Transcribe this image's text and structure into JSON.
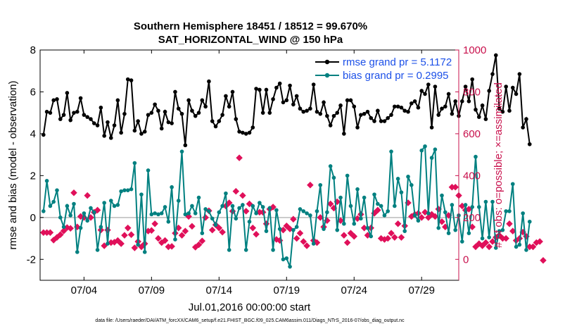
{
  "chart_data": {
    "type": "line",
    "title_line1": "Southern Hemisphere 18451 / 18512 = 99.670%",
    "title_line2": "SAT_HORIZONTAL_WIND @ 150 hPa",
    "xlabel": "Jul.01,2016 00:00:00 start",
    "ylabel": "rmse and bias (model - observation)",
    "y2label": "# of obs: o=possible; ×=assimilated",
    "footer": "data file: /Users/raeder/DAI/ATM_forcXX/CAM6_setup/f.e21.FHIST_BGC.f09_025.CAM6assim.011/Diags_NTrS_2016-07/obs_diag_output.nc",
    "xlim": [
      0.75,
      31.75
    ],
    "ylim": [
      -3,
      8
    ],
    "y2lim": [
      -100,
      1000
    ],
    "xticks": [
      {
        "value": 4,
        "label": "07/04"
      },
      {
        "value": 9,
        "label": "07/09"
      },
      {
        "value": 14,
        "label": "07/14"
      },
      {
        "value": 19,
        "label": "07/19"
      },
      {
        "value": 24,
        "label": "07/24"
      },
      {
        "value": 29,
        "label": "07/29"
      }
    ],
    "yticks": [
      -2,
      0,
      2,
      4,
      6,
      8
    ],
    "y2ticks": [
      0,
      200,
      400,
      600,
      800,
      1000
    ],
    "colors": {
      "rmse": "#000000",
      "bias": "#008080",
      "obs": "#e0105a",
      "legend_text": "#1c50e8",
      "axis": "#000000",
      "right_axis": "#c8104c",
      "zero_line": "#bbbbbb"
    },
    "legend": [
      {
        "name": "rmse grand pr = 5.1172",
        "series": "rmse"
      },
      {
        "name": "bias grand pr = 0.2995",
        "series": "bias"
      }
    ],
    "x_start": 1.0,
    "x_step": 0.25,
    "series": [
      {
        "name": "rmse",
        "values": [
          3.95,
          5.05,
          5.0,
          5.6,
          5.65,
          4.7,
          4.9,
          5.95,
          4.65,
          5.0,
          5.05,
          5.7,
          4.9,
          4.8,
          4.7,
          4.5,
          4.4,
          5.25,
          3.9,
          4.55,
          3.8,
          4.4,
          5.6,
          4.05,
          4.95,
          6.6,
          6.55,
          4.15,
          4.6,
          4.0,
          4.1,
          4.9,
          5.0,
          5.4,
          5.1,
          4.25,
          5.05,
          4.55,
          4.5,
          6.0,
          5.2,
          4.95,
          3.45,
          5.6,
          5.1,
          4.85,
          5.0,
          5.6,
          5.3,
          6.5,
          4.6,
          4.35,
          4.6,
          4.9,
          5.8,
          5.3,
          6.0,
          4.7,
          4.1,
          4.05,
          4.0,
          4.05,
          4.3,
          6.15,
          6.1,
          5.0,
          6.1,
          5.0,
          5.65,
          6.2,
          6.4,
          5.5,
          5.6,
          6.3,
          5.4,
          5.8,
          5.2,
          5.05,
          5.1,
          5.2,
          6.35,
          5.05,
          4.95,
          5.5,
          4.85,
          4.4,
          4.85,
          5.0,
          5.35,
          4.0,
          5.6,
          5.6,
          5.3,
          4.3,
          4.9,
          4.95,
          5.05,
          4.75,
          4.6,
          5.1,
          4.6,
          4.6,
          4.75,
          4.9,
          5.3,
          5.3,
          5.25,
          5.1,
          5.05,
          5.45,
          5.55,
          5.25,
          6.05,
          5.9,
          6.35,
          4.3,
          6.25,
          4.9,
          5.2,
          5.3,
          5.9,
          4.95,
          5.55,
          4.85,
          5.55,
          6.25,
          5.55,
          6.6,
          5.15,
          4.8,
          5.35,
          4.7,
          6.05,
          6.85,
          7.75,
          5.2,
          5.05,
          6.25,
          5.1,
          6.2,
          5.9,
          6.85,
          4.3,
          4.7,
          3.5
        ],
        "color": "#000000"
      },
      {
        "name": "bias",
        "values": [
          0.3,
          1.75,
          0.55,
          0.75,
          1.3,
          0.0,
          -0.45,
          0.55,
          0.1,
          0.65,
          -1.65,
          -0.5,
          0.2,
          -0.15,
          0.45,
          0.25,
          -1.55,
          -0.45,
          0.7,
          -1.25,
          0.8,
          0.55,
          0.6,
          1.25,
          1.3,
          1.3,
          1.35,
          2.6,
          -1.3,
          1.1,
          -1.65,
          2.25,
          0.15,
          0.2,
          0.15,
          0.2,
          0.5,
          -0.2,
          1.45,
          -1.05,
          0.8,
          3.15,
          0.15,
          0.2,
          0.55,
          0.2,
          0.95,
          -0.75,
          0.4,
          0.3,
          -0.05,
          -0.35,
          0.25,
          0.55,
          1.15,
          -1.55,
          0.55,
          -0.05,
          0.45,
          0.6,
          -1.55,
          -0.2,
          0.55,
          0.2,
          0.7,
          0.5,
          -0.65,
          0.45,
          -1.55,
          0.35,
          -0.55,
          -2.0,
          -1.95,
          -2.35,
          -0.6,
          -0.45,
          0.4,
          0.3,
          0.2,
          0.1,
          -1.25,
          0.3,
          1.55,
          -0.55,
          0.25,
          2.45,
          1.9,
          -0.6,
          0.95,
          -0.3,
          2.0,
          0.55,
          -0.3,
          1.35,
          -0.05,
          0.95,
          -0.5,
          -0.9,
          1.1,
          0.65,
          0.55,
          0.1,
          0.3,
          3.15,
          0.55,
          1.85,
          1.2,
          -0.65,
          1.95,
          1.55,
          0.1,
          -0.15,
          3.2,
          3.4,
          0.2,
          2.85,
          3.25,
          -0.5,
          1.05,
          0.25,
          -0.75,
          0.6,
          -0.6,
          0.1,
          -1.15,
          0.6,
          -0.75,
          0.5,
          2.9,
          0.5,
          -1.0,
          0.75,
          -0.95,
          0.75,
          -1.45,
          -0.65,
          -0.6,
          0.3,
          0.3,
          1.6,
          -1.4,
          -1.3,
          0.2,
          -1.55,
          -0.2
        ],
        "color": "#008080"
      },
      {
        "name": "obs_assimilated",
        "values": [
          128,
          128,
          128,
          92,
          105,
          118,
          136,
          152,
          148,
          318,
          155,
          205,
          200,
          305,
          200,
          225,
          235,
          140,
          65,
          140,
          80,
          82,
          90,
          75,
          115,
          150,
          118,
          55,
          85,
          60,
          75,
          135,
          138,
          170,
          100,
          80,
          90,
          60,
          62,
          125,
          150,
          115,
          135,
          205,
          158,
          58,
          70,
          88,
          200,
          232,
          140,
          165,
          150,
          130,
          255,
          270,
          230,
          325,
          485,
          305,
          230,
          265,
          150,
          120,
          225,
          225,
          170,
          240,
          250,
          95,
          90,
          140,
          160,
          145,
          192,
          100,
          125,
          85,
          65,
          355,
          90,
          80,
          200,
          155,
          185,
          265,
          245,
          275,
          185,
          115,
          80,
          125,
          110,
          195,
          215,
          150,
          115,
          150,
          220,
          235,
          100,
          95,
          100,
          125,
          105,
          170,
          105,
          160,
          270,
          205,
          215,
          220,
          200,
          225,
          200,
          215,
          205,
          240,
          180,
          155,
          210,
          345,
          345,
          305,
          255,
          235,
          240,
          155,
          60,
          75,
          65,
          80,
          60,
          85,
          105,
          115,
          100,
          100,
          170,
          135,
          90,
          100,
          130,
          110,
          60,
          60,
          80,
          85,
          -5
        ],
        "color": "#e0105a"
      }
    ]
  }
}
